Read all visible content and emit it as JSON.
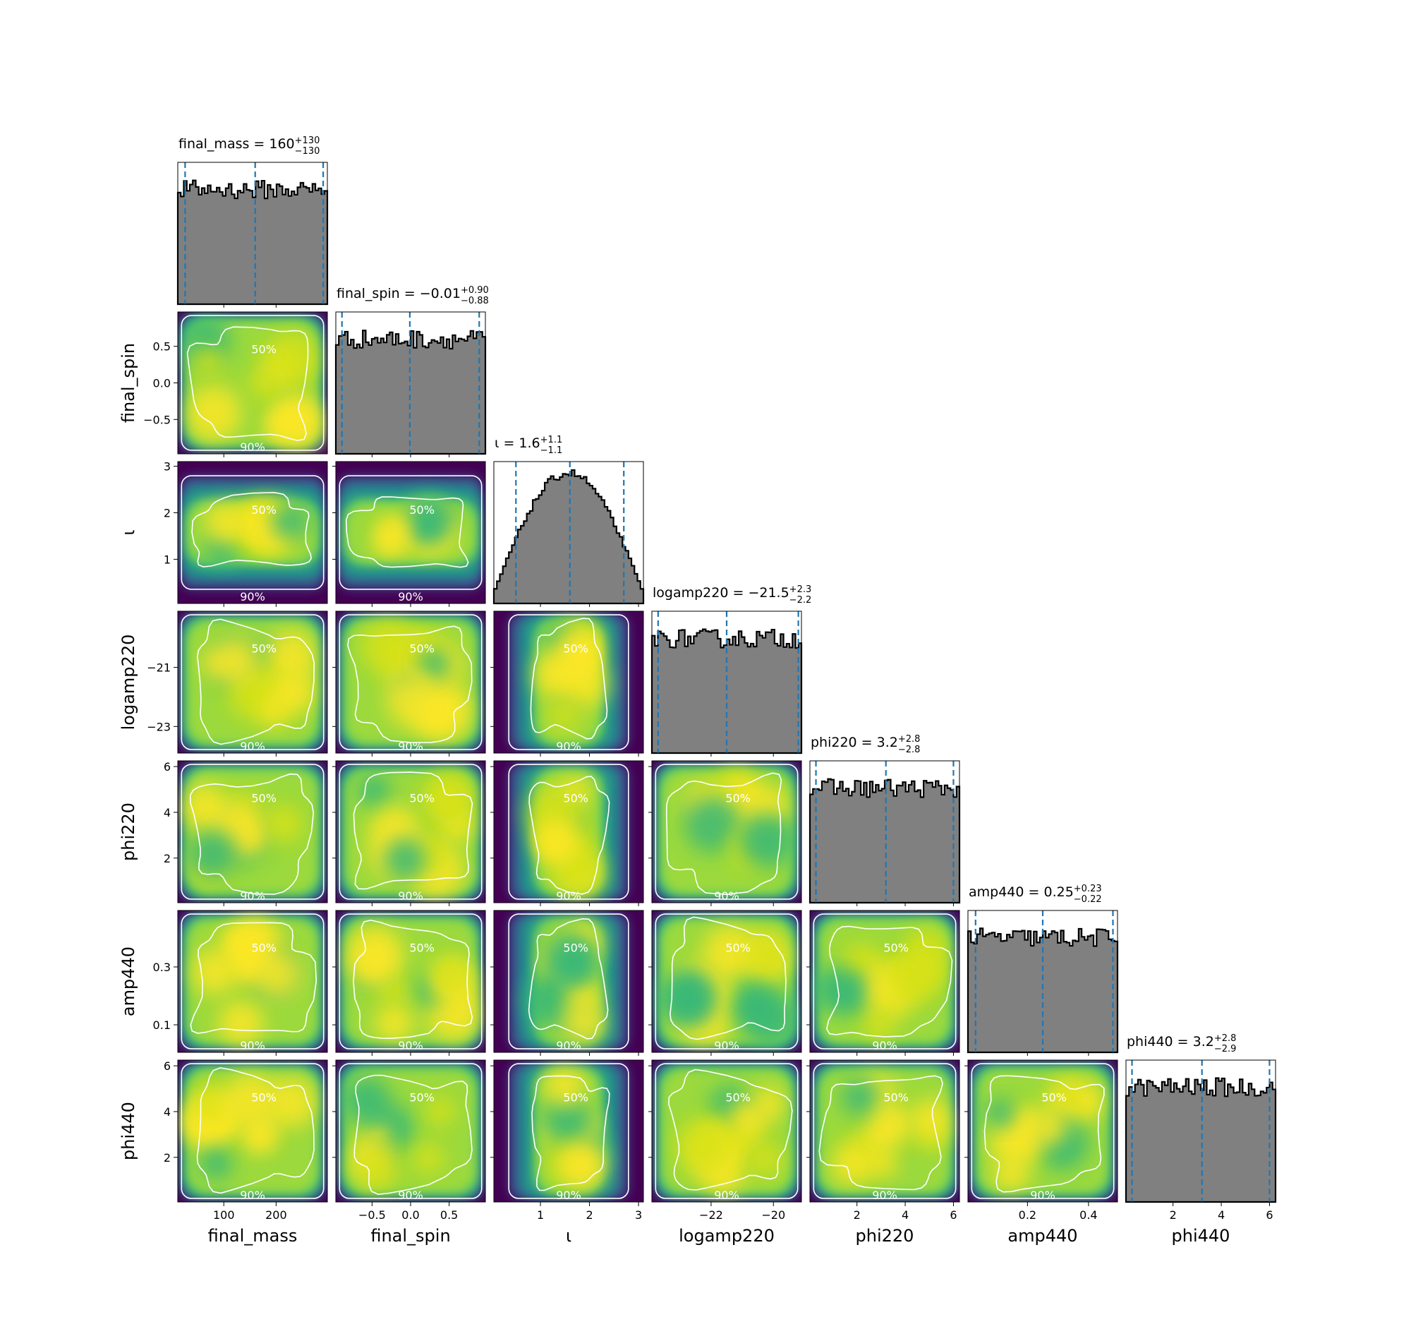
{
  "chart_data": {
    "type": "corner",
    "parameters": [
      {
        "key": "final_mass",
        "label": "final_mass",
        "range": [
          12,
          298
        ],
        "ticks": [
          100,
          200
        ],
        "tick_labels": [
          "100",
          "200"
        ],
        "title": {
          "prefix": "final_mass = ",
          "median": "160",
          "upper": "+130",
          "lower": "−130"
        },
        "quantiles": [
          26,
          160,
          290
        ],
        "hist_shape": "flat"
      },
      {
        "key": "final_spin",
        "label": "final_spin",
        "range": [
          -0.97,
          0.97
        ],
        "ticks": [
          -0.5,
          0.0,
          0.5
        ],
        "tick_labels": [
          "−0.5",
          "0.0",
          "0.5"
        ],
        "title": {
          "prefix": "final_spin = ",
          "median": "−0.01",
          "upper": "+0.90",
          "lower": "−0.88"
        },
        "quantiles": [
          -0.89,
          -0.01,
          0.89
        ],
        "hist_shape": "flat"
      },
      {
        "key": "iota",
        "label": "ι",
        "range": [
          0.05,
          3.1
        ],
        "ticks": [
          1,
          2,
          3
        ],
        "tick_labels": [
          "1",
          "2",
          "3"
        ],
        "title": {
          "prefix": "ι = ",
          "median": "1.6",
          "upper": "+1.1",
          "lower": "−1.1"
        },
        "quantiles": [
          0.5,
          1.6,
          2.7
        ],
        "hist_shape": "peaked"
      },
      {
        "key": "logamp220",
        "label": "logamp220",
        "range": [
          -23.9,
          -19.1
        ],
        "ticks": [
          -22,
          -20
        ],
        "tick_labels": [
          "−22",
          "−20"
        ],
        "title": {
          "prefix": "logamp220 = ",
          "median": "−21.5",
          "upper": "+2.3",
          "lower": "−2.2"
        },
        "quantiles": [
          -23.7,
          -21.5,
          -19.2
        ],
        "hist_shape": "flat"
      },
      {
        "key": "phi220",
        "label": "phi220",
        "range": [
          0.05,
          6.25
        ],
        "ticks": [
          2,
          4,
          6
        ],
        "tick_labels": [
          "2",
          "4",
          "6"
        ],
        "title": {
          "prefix": "phi220 = ",
          "median": "3.2",
          "upper": "+2.8",
          "lower": "−2.8"
        },
        "quantiles": [
          0.3,
          3.2,
          6.0
        ],
        "hist_shape": "flat"
      },
      {
        "key": "amp440",
        "label": "amp440",
        "range": [
          0.005,
          0.495
        ],
        "ticks": [
          0.2,
          0.4
        ],
        "tick_labels": [
          "0.2",
          "0.4"
        ],
        "title": {
          "prefix": "amp440 = ",
          "median": "0.25",
          "upper": "+0.23",
          "lower": "−0.22"
        },
        "quantiles": [
          0.03,
          0.25,
          0.48
        ],
        "hist_shape": "flat"
      },
      {
        "key": "phi440",
        "label": "phi440",
        "range": [
          0.05,
          6.25
        ],
        "ticks": [
          2,
          4,
          6
        ],
        "tick_labels": [
          "2",
          "4",
          "6"
        ],
        "title": {
          "prefix": "phi440 = ",
          "median": "3.2",
          "upper": "+2.8",
          "lower": "−2.9"
        },
        "quantiles": [
          0.3,
          3.2,
          6.0
        ],
        "hist_shape": "flat"
      }
    ],
    "y_axis_ticks": {
      "final_spin": {
        "ticks": [
          0.5,
          0.0,
          -0.5
        ],
        "tick_labels": [
          "0.5",
          "0.0",
          "−0.5"
        ]
      },
      "iota": {
        "ticks": [
          3,
          2,
          1
        ],
        "tick_labels": [
          "3",
          "2",
          "1"
        ]
      },
      "logamp220": {
        "ticks": [
          -21,
          -23
        ],
        "tick_labels": [
          "−21",
          "−23"
        ]
      },
      "phi220": {
        "ticks": [
          6,
          4,
          2
        ],
        "tick_labels": [
          "6",
          "4",
          "2"
        ]
      },
      "amp440": {
        "ticks": [
          0.3,
          0.1
        ],
        "tick_labels": [
          "0.3",
          "0.1"
        ]
      },
      "phi440": {
        "ticks": [
          6,
          4,
          2
        ],
        "tick_labels": [
          "6",
          "4",
          "2"
        ]
      }
    },
    "contour_levels": [
      "50%",
      "90%"
    ],
    "colors": {
      "histogram_fill": "#808080",
      "histogram_edge": "#000000",
      "quantile_line": "#1f77b4",
      "contour_line": "#ffffff",
      "colormap": [
        "#440154",
        "#3b528b",
        "#21918c",
        "#5ec962",
        "#fde725"
      ]
    }
  }
}
